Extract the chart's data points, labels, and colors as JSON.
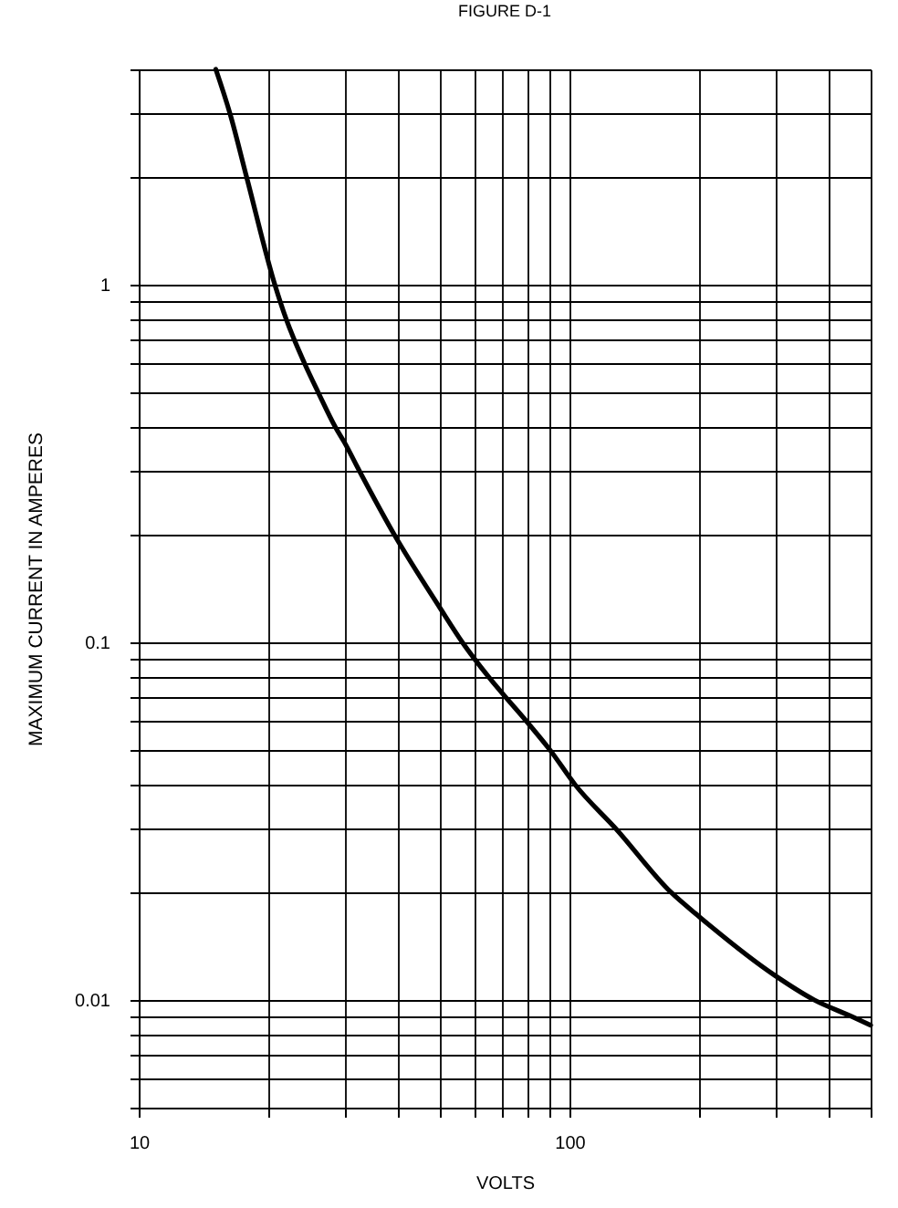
{
  "chart_data": {
    "type": "line",
    "title": "FIGURE D-1",
    "xlabel": "VOLTS",
    "ylabel": "MAXIMUM CURRENT IN AMPERES",
    "x": [
      15.1,
      16.3,
      17.8,
      20.7,
      22,
      24.3,
      26.1,
      28.6,
      30,
      32.6,
      39.2,
      50,
      56.4,
      64.9,
      79.6,
      90.1,
      103,
      128.5,
      172,
      200,
      300,
      370,
      451,
      500
    ],
    "series": [
      {
        "color": "#000000",
        "values": [
          4,
          3,
          2,
          1,
          0.8,
          0.6,
          0.5,
          0.4,
          0.363,
          0.3,
          0.2,
          0.125,
          0.1,
          0.08,
          0.06,
          0.05,
          0.04,
          0.03,
          0.02,
          0.0171,
          0.0117,
          0.01,
          0.009,
          0.0085
        ]
      }
    ],
    "log": "xy",
    "xlim": [
      10,
      500
    ],
    "ylim": [
      0.005,
      4
    ],
    "xticks": [
      10,
      {
        "value": 20,
        "label": null
      },
      {
        "value": 30,
        "label": null
      },
      {
        "value": 40,
        "label": null
      },
      {
        "value": 50,
        "label": null
      },
      {
        "value": 60,
        "label": null
      },
      {
        "value": 70,
        "label": null
      },
      {
        "value": 80,
        "label": null
      },
      {
        "value": 90,
        "label": null
      },
      100,
      {
        "value": 200,
        "label": null
      },
      {
        "value": 300,
        "label": null
      },
      {
        "value": 400,
        "label": null
      },
      {
        "value": 500,
        "label": null
      }
    ],
    "yticks": [
      {
        "value": 0.005,
        "label": null
      },
      {
        "value": 0.006,
        "label": null
      },
      {
        "value": 0.007,
        "label": null
      },
      {
        "value": 0.008,
        "label": null
      },
      {
        "value": 0.009,
        "label": null
      },
      0.01,
      {
        "value": 0.02,
        "label": null
      },
      {
        "value": 0.03,
        "label": null
      },
      {
        "value": 0.04,
        "label": null
      },
      {
        "value": 0.05,
        "label": null
      },
      {
        "value": 0.06,
        "label": null
      },
      {
        "value": 0.07,
        "label": null
      },
      {
        "value": 0.08,
        "label": null
      },
      {
        "value": 0.09,
        "label": null
      },
      0.1,
      {
        "value": 0.2,
        "label": null
      },
      {
        "value": 0.3,
        "label": null
      },
      {
        "value": 0.4,
        "label": null
      },
      {
        "value": 0.5,
        "label": null
      },
      {
        "value": 0.6,
        "label": null
      },
      {
        "value": 0.7,
        "label": null
      },
      {
        "value": 0.8,
        "label": null
      },
      {
        "value": 0.9,
        "label": null
      },
      1,
      {
        "value": 2,
        "label": null
      },
      {
        "value": 3,
        "label": null
      },
      {
        "value": 4,
        "label": null
      }
    ],
    "grid": true
  }
}
